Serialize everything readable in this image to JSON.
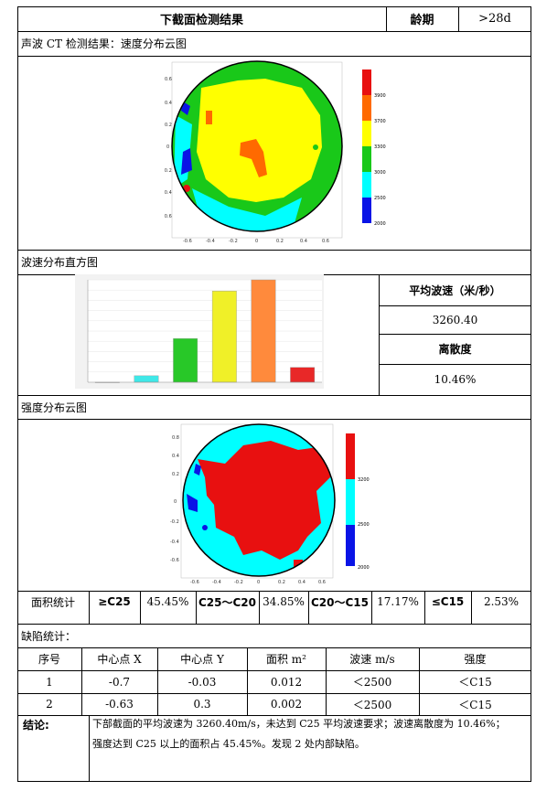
{
  "header": {
    "title": "下截面检测结果",
    "age_label": "龄期",
    "age_value": ">28d"
  },
  "velocity_cloud": {
    "title": "声波 CT 检测结果：速度分布云图",
    "legend": [
      "3900",
      "3700",
      "3300",
      "3000",
      "2500",
      "2000"
    ],
    "colors": {
      "red": "#e81010",
      "orange": "#ff6a00",
      "yellow": "#ffff00",
      "green": "#19c819",
      "cyan": "#00ffff",
      "blue": "#0a14e6"
    }
  },
  "histogram": {
    "title": "波速分布直方图"
  },
  "stats": {
    "avg_label": "平均波速（米/秒）",
    "avg_value": "3260.40",
    "disp_label": "离散度",
    "disp_value": "10.46%"
  },
  "chart_data": {
    "type": "bar",
    "categories": [
      "",
      "",
      "",
      "",
      "",
      ""
    ],
    "values": [
      0,
      7,
      47,
      98,
      110,
      16
    ],
    "bar_colors": [
      "#cfcfcf",
      "#3fe8e8",
      "#28c828",
      "#f0f028",
      "#ff8a3c",
      "#e82828"
    ],
    "ylim": [
      0,
      110
    ],
    "grid": true
  },
  "strength_cloud": {
    "title": "强度分布云图",
    "legend": [
      "3200",
      "2500",
      "2000"
    ]
  },
  "area_stats": {
    "label": "面积统计",
    "c1_label": "≥C25",
    "c1_value": "45.45%",
    "c2_label": "C25～C20",
    "c2_value": "34.85%",
    "c3_label": "C20～C15",
    "c3_value": "17.17%",
    "c4_label": "≤C15",
    "c4_value": "2.53%"
  },
  "defects": {
    "label": "缺陷统计：",
    "headers": [
      "序号",
      "中心点 X",
      "中心点 Y",
      "面积 m²",
      "波速 m/s",
      "强度"
    ],
    "rows": [
      [
        "1",
        "-0.7",
        "-0.03",
        "0.012",
        "＜2500",
        "＜C15"
      ],
      [
        "2",
        "-0.63",
        "0.3",
        "0.002",
        "＜2500",
        "＜C15"
      ]
    ]
  },
  "conclusion": {
    "label": "结论:",
    "line1": "下部截面的平均波速为 3260.40m/s，未达到 C25 平均波速要求；波速离散度为 10.46%；",
    "line2": "强度达到 C25 以上的面积占 45.45%。发现 2 处内部缺陷。"
  }
}
